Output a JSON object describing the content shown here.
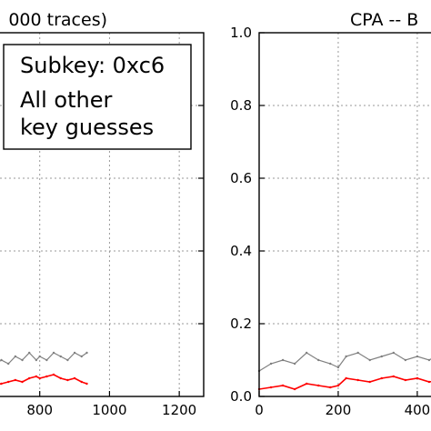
{
  "chart_data": [
    {
      "type": "line",
      "title": "000 traces)",
      "x_ticks": [
        "800",
        "1000",
        "1200"
      ],
      "x_tick_values": [
        800,
        1000,
        1200
      ],
      "xlim": [
        660,
        1270
      ],
      "ylim": [
        0,
        1.0
      ],
      "grid": true,
      "legend": {
        "placement": "top-right",
        "entries": [
          {
            "label": "Subkey: 0xc6",
            "color": "#ff0000"
          },
          {
            "label_lines": [
              "All other",
              "key guesses"
            ],
            "color": "#808080"
          }
        ]
      },
      "series": [
        {
          "color": "#ff0000",
          "x": [
            660,
            690,
            710,
            730,
            750,
            770,
            790,
            800,
            820,
            840,
            860,
            880,
            900,
            920,
            935
          ],
          "y": [
            0.03,
            0.035,
            0.04,
            0.045,
            0.04,
            0.05,
            0.055,
            0.05,
            0.055,
            0.06,
            0.05,
            0.045,
            0.05,
            0.04,
            0.035
          ]
        },
        {
          "color": "#808080",
          "x": [
            660,
            690,
            710,
            730,
            750,
            770,
            790,
            800,
            820,
            840,
            860,
            880,
            900,
            920,
            935
          ],
          "y": [
            0.08,
            0.1,
            0.09,
            0.11,
            0.1,
            0.12,
            0.1,
            0.11,
            0.1,
            0.12,
            0.11,
            0.1,
            0.12,
            0.11,
            0.12
          ]
        }
      ]
    },
    {
      "type": "line",
      "title": "CPA -- B",
      "x_ticks": [
        "0",
        "200",
        "400"
      ],
      "x_tick_values": [
        0,
        200,
        400
      ],
      "y_ticks": [
        "0.0",
        "0.2",
        "0.4",
        "0.6",
        "0.8",
        "1.0"
      ],
      "y_tick_values": [
        0.0,
        0.2,
        0.4,
        0.6,
        0.8,
        1.0
      ],
      "xlim": [
        0,
        460
      ],
      "ylim": [
        0,
        1.0
      ],
      "grid": true,
      "series": [
        {
          "color": "#ff0000",
          "x": [
            0,
            30,
            60,
            90,
            120,
            150,
            180,
            200,
            220,
            250,
            280,
            310,
            340,
            370,
            400,
            430,
            460
          ],
          "y": [
            0.02,
            0.025,
            0.03,
            0.02,
            0.035,
            0.03,
            0.025,
            0.03,
            0.05,
            0.045,
            0.04,
            0.05,
            0.055,
            0.045,
            0.05,
            0.04,
            0.045
          ]
        },
        {
          "color": "#808080",
          "x": [
            0,
            30,
            60,
            90,
            120,
            150,
            180,
            200,
            220,
            250,
            280,
            310,
            340,
            370,
            400,
            430,
            460
          ],
          "y": [
            0.07,
            0.09,
            0.1,
            0.09,
            0.12,
            0.1,
            0.09,
            0.08,
            0.11,
            0.12,
            0.1,
            0.11,
            0.12,
            0.1,
            0.11,
            0.1,
            0.12
          ]
        }
      ]
    }
  ]
}
